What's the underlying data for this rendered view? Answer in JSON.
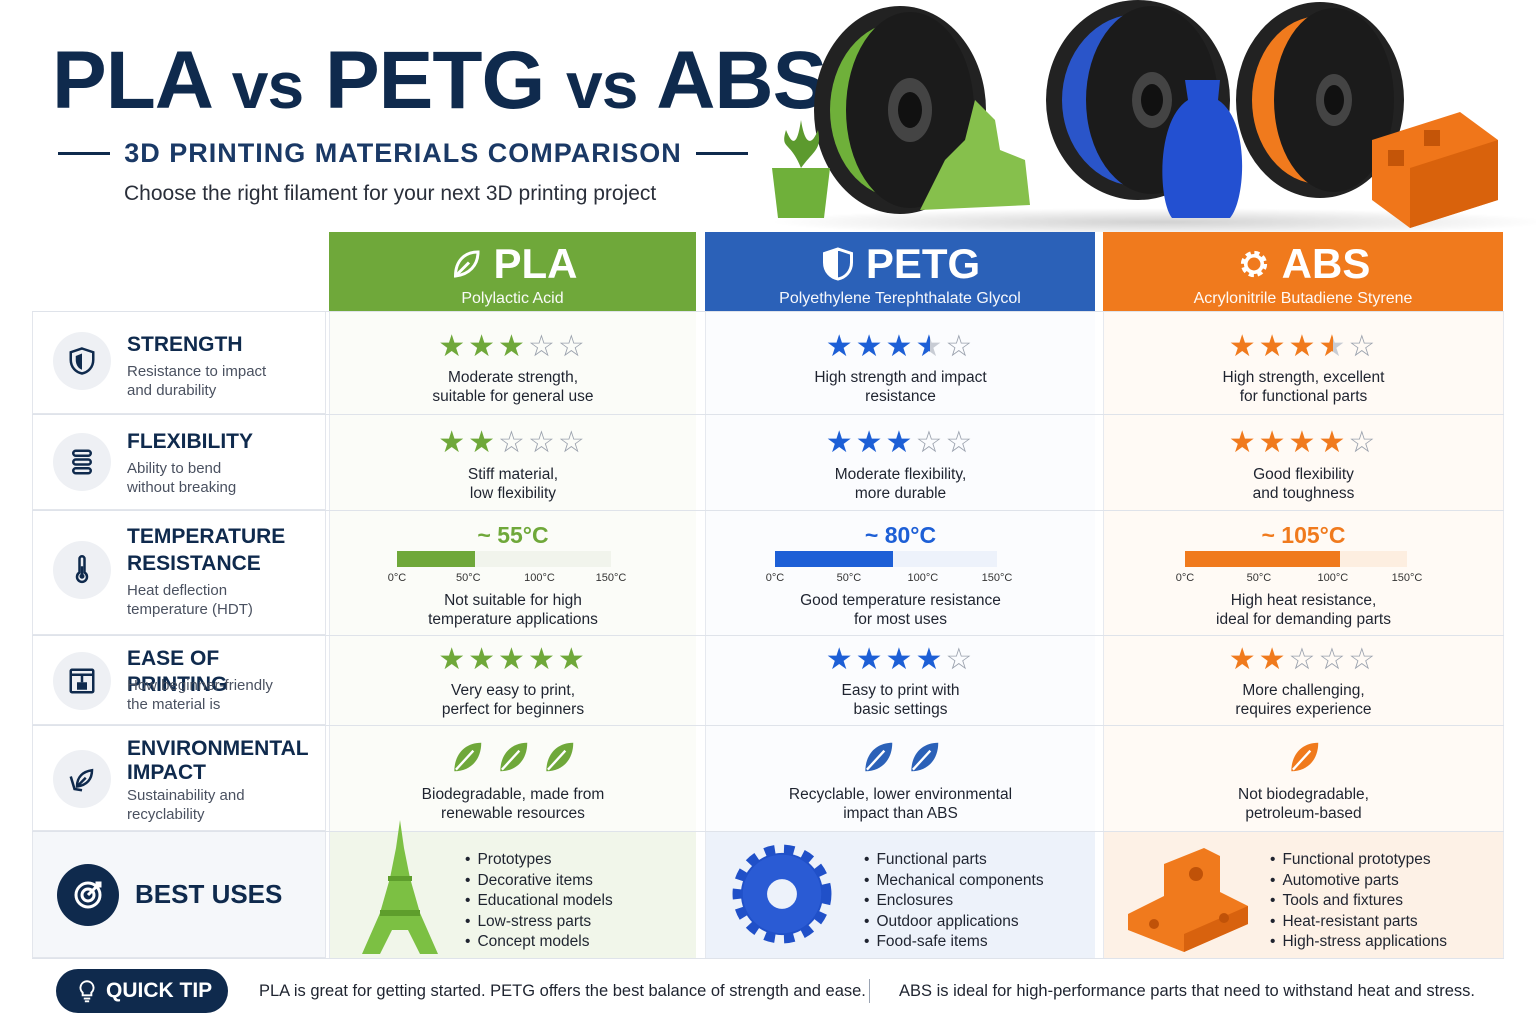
{
  "header": {
    "title_a": "PLA",
    "vs1": "vs",
    "title_b": "PETG",
    "vs2": "vs",
    "title_c": "ABS",
    "subtitle": "3D PRINTING MATERIALS COMPARISON",
    "tagline": "Choose the right filament for your next 3D printing project"
  },
  "colors": {
    "pla": "#6fa83a",
    "petg": "#2b61b8",
    "abs": "#f07a1d",
    "navy": "#0f2a4d"
  },
  "materials": [
    {
      "key": "pla",
      "name": "PLA",
      "full": "Polylactic Acid",
      "icon": "leaf-icon"
    },
    {
      "key": "petg",
      "name": "PETG",
      "full": "Polyethylene Terephthalate Glycol",
      "icon": "shield-icon"
    },
    {
      "key": "abs",
      "name": "ABS",
      "full": "Acrylonitrile Butadiene Styrene",
      "icon": "gear-icon"
    }
  ],
  "criteria": {
    "strength": {
      "title": "STRENGTH",
      "desc_1": "Resistance to impact",
      "desc_2": "and durability",
      "icon": "shield-icon",
      "pla": {
        "rating": 3,
        "text_1": "Moderate strength,",
        "text_2": "suitable for general use"
      },
      "petg": {
        "rating": 3.5,
        "text_1": "High strength and impact",
        "text_2": "resistance"
      },
      "abs": {
        "rating": 3.5,
        "text_1": "High strength, excellent",
        "text_2": "for functional parts"
      }
    },
    "flexibility": {
      "title": "FLEXIBILITY",
      "desc_1": "Ability to bend",
      "desc_2": "without breaking",
      "icon": "spring-icon",
      "pla": {
        "rating": 2,
        "text_1": "Stiff material,",
        "text_2": "low flexibility"
      },
      "petg": {
        "rating": 3,
        "text_1": "Moderate flexibility,",
        "text_2": "more durable"
      },
      "abs": {
        "rating": 4,
        "text_1": "Good flexibility",
        "text_2": "and toughness"
      }
    },
    "temperature": {
      "title_1": "TEMPERATURE",
      "title_2": "RESISTANCE",
      "desc_1": "Heat deflection",
      "desc_2": "temperature (HDT)",
      "icon": "thermometer-icon",
      "ticks": [
        "0°C",
        "50°C",
        "100°C",
        "150°C"
      ],
      "max": 150,
      "pla": {
        "value": 55,
        "label": "~ 55°C",
        "text_1": "Not suitable for high",
        "text_2": "temperature applications"
      },
      "petg": {
        "value": 80,
        "label": "~ 80°C",
        "text_1": "Good temperature resistance",
        "text_2": "for most uses"
      },
      "abs": {
        "value": 105,
        "label": "~ 105°C",
        "text_1": "High heat resistance,",
        "text_2": "ideal for demanding parts"
      }
    },
    "ease": {
      "title": "EASE OF PRINTING",
      "desc_1": "How beginner-friendly",
      "desc_2": "the material is",
      "icon": "printer-icon",
      "pla": {
        "rating": 5,
        "text_1": "Very easy to print,",
        "text_2": "perfect for beginners"
      },
      "petg": {
        "rating": 4,
        "text_1": "Easy to print with",
        "text_2": "basic settings"
      },
      "abs": {
        "rating": 2,
        "text_1": "More challenging,",
        "text_2": "requires experience"
      }
    },
    "environment": {
      "title_1": "ENVIRONMENTAL",
      "title_2": "IMPACT",
      "desc_1": "Sustainability and",
      "desc_2": "recyclability",
      "icon": "recycle-leaf-icon",
      "pla": {
        "leaves": 3,
        "text_1": "Biodegradable, made from",
        "text_2": "renewable resources"
      },
      "petg": {
        "leaves": 2,
        "text_1": "Recyclable, lower environmental",
        "text_2": "impact than ABS"
      },
      "abs": {
        "leaves": 1,
        "text_1": "Not biodegradable,",
        "text_2": "petroleum-based"
      }
    }
  },
  "best_uses": {
    "title": "BEST USES",
    "icon": "target-icon",
    "pla": [
      "Prototypes",
      "Decorative items",
      "Educational models",
      "Low-stress parts",
      "Concept models"
    ],
    "petg": [
      "Functional parts",
      "Mechanical components",
      "Enclosures",
      "Outdoor applications",
      "Food-safe items"
    ],
    "abs": [
      "Functional prototypes",
      "Automotive parts",
      "Tools and fixtures",
      "Heat-resistant parts",
      "High-stress applications"
    ]
  },
  "tip": {
    "label": "QUICK TIP",
    "text_1": "PLA is great for getting started. PETG offers the best balance of strength and ease.",
    "text_2": "ABS is ideal for high-performance parts that need to withstand heat and stress."
  }
}
